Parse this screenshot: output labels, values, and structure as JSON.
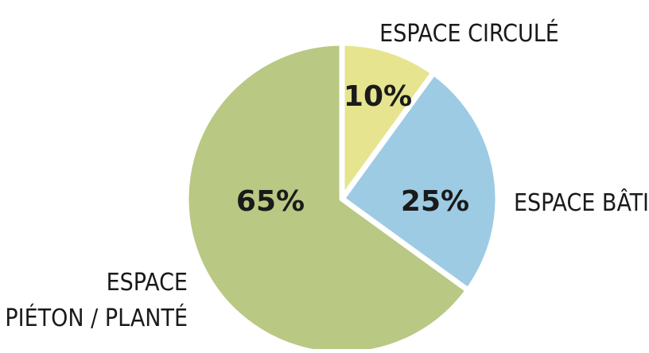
{
  "chart_data": {
    "type": "pie",
    "slices": [
      {
        "category": "ESPACE CIRCULÉ",
        "value": 10,
        "label": "10%",
        "color": "#e6e48f"
      },
      {
        "category": "ESPACE BÂTI",
        "value": 25,
        "label": "25%",
        "color": "#9dcbe3"
      },
      {
        "category": [
          "ESPACE",
          "PIÉTON / PLANTÉ"
        ],
        "value": 65,
        "label": "65%",
        "color": "#b9c883"
      }
    ],
    "start_angle_deg": 0,
    "direction": "clockwise",
    "separator_color": "#ffffff",
    "title": "",
    "legend": "none"
  }
}
